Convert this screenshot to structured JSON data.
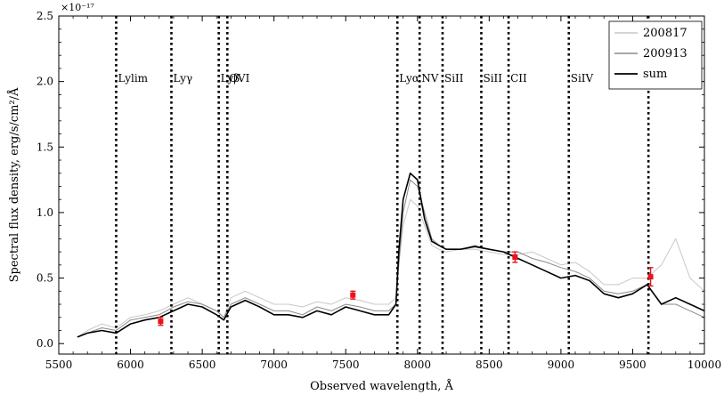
{
  "chart_data": {
    "type": "line",
    "title": "",
    "xlabel": "Observed wavelength, Å",
    "ylabel": "Spectral flux density, erg/s/cm²/Å",
    "y_multiplier": "×10⁻¹⁷",
    "xlim": [
      5500,
      10000
    ],
    "ylim": [
      -0.08,
      2.5
    ],
    "x_ticks": [
      5500,
      6000,
      6500,
      7000,
      7500,
      8000,
      8500,
      9000,
      9500,
      10000
    ],
    "y_ticks": [
      0.0,
      0.5,
      1.0,
      1.5,
      2.0,
      2.5
    ],
    "x_tick_labels": [
      "5500",
      "6000",
      "6500",
      "7000",
      "7500",
      "8000",
      "8500",
      "9000",
      "9500",
      "10000"
    ],
    "y_tick_labels": [
      "0.0",
      "0.5",
      "1.0",
      "1.5",
      "2.0",
      "2.5"
    ],
    "grid": false,
    "legend_position": "top-right",
    "legend": [
      "200817",
      "200913",
      "sum"
    ],
    "colors": {
      "200817": "#c8c8c8",
      "200913": "#8a8a8a",
      "sum": "#000000",
      "photometry": "#e8141c"
    },
    "series": [
      {
        "name": "200817",
        "x": [
          5630,
          5700,
          5800,
          5900,
          6000,
          6100,
          6200,
          6300,
          6400,
          6500,
          6600,
          6650,
          6700,
          6800,
          6900,
          7000,
          7100,
          7200,
          7300,
          7400,
          7500,
          7600,
          7700,
          7800,
          7850,
          7870,
          7900,
          7950,
          8000,
          8050,
          8100,
          8150,
          8200,
          8300,
          8400,
          8500,
          8600,
          8700,
          8800,
          8900,
          9000,
          9100,
          9200,
          9300,
          9400,
          9500,
          9600,
          9700,
          9800,
          9900,
          10000
        ],
        "y": [
          0.05,
          0.1,
          0.15,
          0.12,
          0.2,
          0.22,
          0.25,
          0.3,
          0.35,
          0.3,
          0.25,
          0.2,
          0.35,
          0.4,
          0.35,
          0.3,
          0.3,
          0.28,
          0.32,
          0.3,
          0.35,
          0.33,
          0.3,
          0.3,
          0.35,
          0.6,
          0.9,
          1.1,
          1.05,
          0.9,
          0.75,
          0.72,
          0.7,
          0.72,
          0.72,
          0.7,
          0.68,
          0.68,
          0.7,
          0.65,
          0.6,
          0.62,
          0.55,
          0.45,
          0.45,
          0.5,
          0.5,
          0.6,
          0.8,
          0.5,
          0.4
        ]
      },
      {
        "name": "200913",
        "x": [
          5630,
          5700,
          5800,
          5900,
          6000,
          6100,
          6200,
          6300,
          6400,
          6500,
          6600,
          6650,
          6700,
          6800,
          6900,
          7000,
          7100,
          7200,
          7300,
          7400,
          7500,
          7600,
          7700,
          7800,
          7850,
          7870,
          7900,
          7950,
          8000,
          8050,
          8100,
          8150,
          8200,
          8300,
          8400,
          8500,
          8600,
          8700,
          8800,
          8900,
          9000,
          9100,
          9200,
          9300,
          9400,
          9500,
          9600,
          9700,
          9800,
          9900,
          10000
        ],
        "y": [
          0.05,
          0.08,
          0.12,
          0.1,
          0.18,
          0.2,
          0.22,
          0.28,
          0.32,
          0.3,
          0.25,
          0.2,
          0.3,
          0.35,
          0.3,
          0.25,
          0.25,
          0.22,
          0.28,
          0.25,
          0.3,
          0.28,
          0.25,
          0.25,
          0.3,
          0.6,
          1.0,
          1.25,
          1.2,
          1.0,
          0.8,
          0.75,
          0.72,
          0.72,
          0.75,
          0.72,
          0.7,
          0.7,
          0.65,
          0.62,
          0.58,
          0.55,
          0.5,
          0.4,
          0.38,
          0.4,
          0.45,
          0.3,
          0.3,
          0.25,
          0.2
        ]
      },
      {
        "name": "sum",
        "x": [
          5630,
          5700,
          5800,
          5900,
          6000,
          6100,
          6200,
          6300,
          6400,
          6500,
          6600,
          6650,
          6700,
          6800,
          6900,
          7000,
          7100,
          7200,
          7300,
          7400,
          7500,
          7600,
          7700,
          7800,
          7850,
          7870,
          7900,
          7950,
          8000,
          8050,
          8100,
          8150,
          8200,
          8300,
          8400,
          8500,
          8600,
          8700,
          8800,
          8900,
          9000,
          9100,
          9200,
          9300,
          9400,
          9500,
          9600,
          9700,
          9800,
          9900,
          10000
        ],
        "y": [
          0.05,
          0.08,
          0.1,
          0.08,
          0.15,
          0.18,
          0.2,
          0.25,
          0.3,
          0.28,
          0.22,
          0.18,
          0.28,
          0.33,
          0.28,
          0.22,
          0.22,
          0.2,
          0.25,
          0.22,
          0.28,
          0.25,
          0.22,
          0.22,
          0.3,
          0.7,
          1.1,
          1.3,
          1.25,
          0.95,
          0.78,
          0.75,
          0.72,
          0.72,
          0.74,
          0.72,
          0.7,
          0.65,
          0.6,
          0.55,
          0.5,
          0.52,
          0.48,
          0.38,
          0.35,
          0.38,
          0.45,
          0.3,
          0.35,
          0.3,
          0.25
        ]
      }
    ],
    "emission_lines": [
      {
        "label": "Lylim",
        "x": 5900
      },
      {
        "label": "Lyγ",
        "x": 6285
      },
      {
        "label": "Lyβ",
        "x": 6615
      },
      {
        "label": "OVI",
        "x": 6675
      },
      {
        "label": "Lyα",
        "x": 7860
      },
      {
        "label": "NV",
        "x": 8015
      },
      {
        "label": "SiII",
        "x": 8175
      },
      {
        "label": "SiII",
        "x": 8445
      },
      {
        "label": "CII",
        "x": 8635
      },
      {
        "label": "SiIV",
        "x": 9055
      },
      {
        "label": "",
        "x": 9610
      }
    ],
    "photometry_points": [
      {
        "x": 6210,
        "y": 0.17,
        "yerr": 0.03
      },
      {
        "x": 7550,
        "y": 0.37,
        "yerr": 0.03
      },
      {
        "x": 8680,
        "y": 0.66,
        "yerr": 0.04
      },
      {
        "x": 9625,
        "y": 0.51,
        "yerr": 0.07
      }
    ]
  }
}
